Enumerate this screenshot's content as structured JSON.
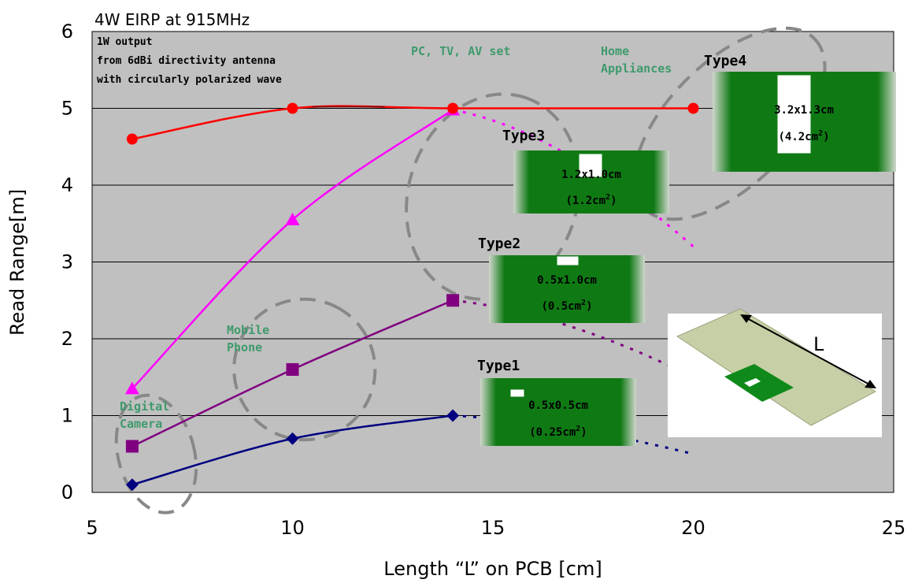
{
  "chart_data": {
    "type": "line",
    "title": "4W  EIRP at 915MHz",
    "xlabel": "Length “L” on PCB [cm]",
    "ylabel": "Read Range[m]",
    "xlim": [
      5,
      25
    ],
    "ylim": [
      0,
      6
    ],
    "xticks": [
      "5",
      "10",
      "15",
      "20",
      "25"
    ],
    "yticks": [
      "0",
      "1",
      "2",
      "3",
      "4",
      "5",
      "6"
    ],
    "grid": "horizontal",
    "note": [
      "1W output",
      "from 6dBi directivity antenna",
      "with circularly polarized wave"
    ],
    "series": [
      {
        "name": "Type1",
        "color": "#000080",
        "marker": "diamond",
        "x": [
          6,
          10,
          14
        ],
        "y": [
          0.1,
          0.7,
          1.0
        ],
        "extrapolation": {
          "x": [
            14,
            20
          ],
          "y": [
            1.0,
            0.5
          ]
        }
      },
      {
        "name": "Type2",
        "color": "#800080",
        "marker": "square",
        "x": [
          6,
          10,
          14
        ],
        "y": [
          0.6,
          1.6,
          2.5
        ],
        "extrapolation": {
          "x": [
            14,
            20
          ],
          "y": [
            2.5,
            1.5
          ]
        }
      },
      {
        "name": "Type3",
        "color": "#ff00ff",
        "marker": "triangle",
        "x": [
          6,
          10,
          14
        ],
        "y": [
          1.35,
          3.55,
          4.98
        ],
        "extrapolation": {
          "x": [
            14,
            20
          ],
          "y": [
            4.98,
            3.2
          ]
        }
      },
      {
        "name": "Type4",
        "color": "#ff0000",
        "marker": "circle",
        "x": [
          6,
          10,
          14,
          20
        ],
        "y": [
          4.6,
          5.0,
          5.0,
          5.0
        ]
      }
    ],
    "annotations": [
      {
        "label": "Digital\nCamera",
        "x": 6.6,
        "y": 0.55
      },
      {
        "label": "Mobile\nPhone",
        "x": 10.5,
        "y": 1.7
      },
      {
        "label": "PC, TV, AV set",
        "x": 14.7,
        "y": 4.15
      },
      {
        "label": "Home\nAppliances",
        "x": 20.2,
        "y": 4.4
      }
    ],
    "boards": [
      {
        "type": "Type1",
        "size": "0.5x0.5cm",
        "area": "(0.25cm",
        "sup": "2",
        "close": ")"
      },
      {
        "type": "Type2",
        "size": "0.5x1.0cm",
        "area": "(0.5cm",
        "sup": "2",
        "close": ")"
      },
      {
        "type": "Type3",
        "size": "1.2x1.0cm",
        "area": "(1.2cm",
        "sup": "2",
        "close": ")"
      },
      {
        "type": "Type4",
        "size": "3.2x1.3cm",
        "area": "(4.2cm",
        "sup": "2",
        "close": ")"
      }
    ],
    "inset_label": "L"
  }
}
